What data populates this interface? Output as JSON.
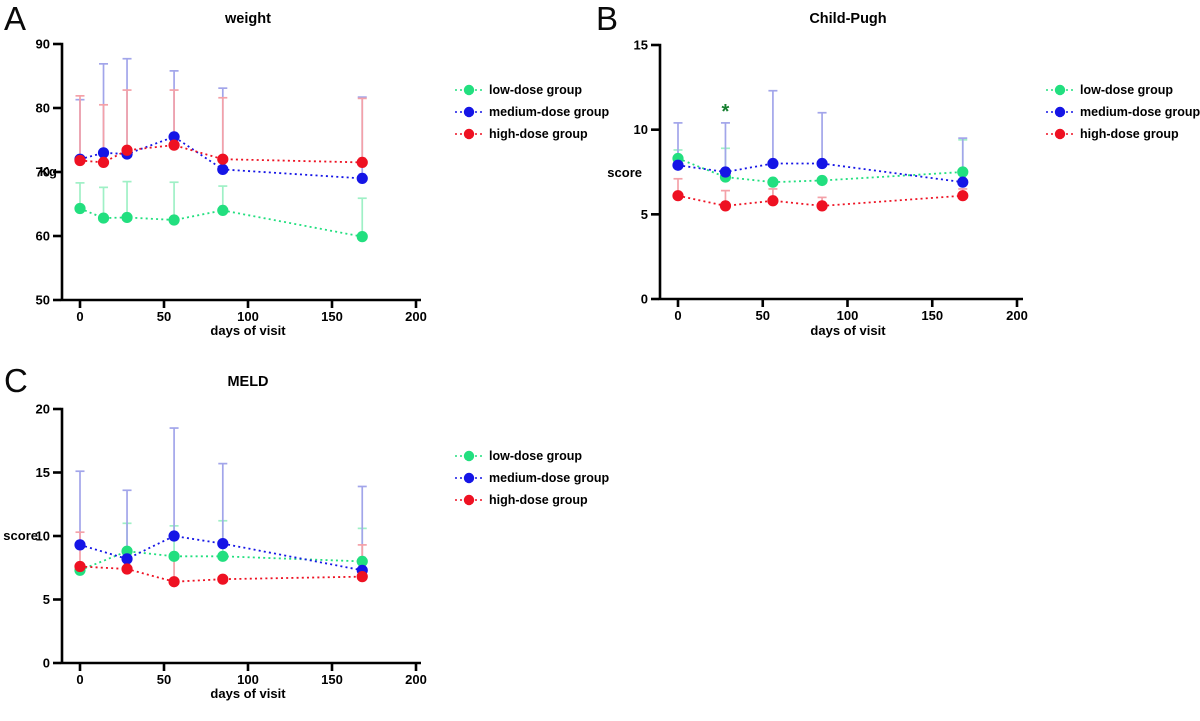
{
  "figure": {
    "panels": [
      {
        "label": "A",
        "title": "weight",
        "ylabel": "Kg",
        "xlabel": "days of visit"
      },
      {
        "label": "B",
        "title": "Child-Pugh",
        "ylabel": "score",
        "xlabel": "days of visit"
      },
      {
        "label": "C",
        "title": "MELD",
        "ylabel": "score",
        "xlabel": "days of visit"
      }
    ],
    "legend": {
      "items": [
        {
          "label": "low-dose group",
          "color": "#22df7f"
        },
        {
          "label": "medium-dose group",
          "color": "#1515e6"
        },
        {
          "label": "high-dose group",
          "color": "#ee1122"
        }
      ]
    }
  },
  "chart_data": [
    {
      "type": "line",
      "title": "weight",
      "xlabel": "days of visit",
      "ylabel": "Kg",
      "x": [
        0,
        14,
        28,
        56,
        85,
        168
      ],
      "xlim": [
        0,
        200
      ],
      "xticks": [
        0,
        50,
        100,
        150,
        200
      ],
      "ylim": [
        50,
        90
      ],
      "yticks": [
        50,
        60,
        70,
        80,
        90
      ],
      "grid": false,
      "legend_position": "right",
      "series": [
        {
          "name": "low-dose group",
          "color": "#22df7f",
          "light": "#9ff0c6",
          "values": [
            64.3,
            62.8,
            62.9,
            62.5,
            64.0,
            59.9
          ],
          "upper": [
            68.3,
            67.6,
            68.5,
            68.4,
            67.8,
            65.9
          ]
        },
        {
          "name": "medium-dose group",
          "color": "#1515e6",
          "light": "#a2a5ea",
          "values": [
            72.0,
            73.0,
            72.8,
            75.5,
            70.4,
            69.0
          ],
          "upper": [
            81.3,
            86.9,
            87.7,
            85.8,
            83.1,
            81.7
          ]
        },
        {
          "name": "high-dose group",
          "color": "#ee1122",
          "light": "#f4a1a8",
          "values": [
            71.8,
            71.5,
            73.4,
            74.2,
            72.0,
            71.5
          ],
          "upper": [
            81.9,
            80.5,
            82.8,
            82.8,
            81.6,
            81.5
          ]
        }
      ],
      "annotations": []
    },
    {
      "type": "line",
      "title": "Child-Pugh",
      "xlabel": "days of visit",
      "ylabel": "score",
      "x": [
        0,
        28,
        56,
        85,
        168
      ],
      "xlim": [
        0,
        200
      ],
      "xticks": [
        0,
        50,
        100,
        150,
        200
      ],
      "ylim": [
        0,
        15
      ],
      "yticks": [
        0,
        5,
        10,
        15
      ],
      "grid": false,
      "legend_position": "right",
      "series": [
        {
          "name": "low-dose group",
          "color": "#22df7f",
          "light": "#9ff0c6",
          "values": [
            8.3,
            7.2,
            6.9,
            7.0,
            7.5
          ],
          "upper": [
            8.8,
            8.9,
            6.9,
            7.0,
            9.4
          ]
        },
        {
          "name": "medium-dose group",
          "color": "#1515e6",
          "light": "#a2a5ea",
          "values": [
            7.9,
            7.5,
            8.0,
            8.0,
            6.9
          ],
          "upper": [
            10.4,
            10.4,
            12.3,
            11.0,
            9.5
          ]
        },
        {
          "name": "high-dose group",
          "color": "#ee1122",
          "light": "#f4a1a8",
          "values": [
            6.1,
            5.5,
            5.8,
            5.5,
            6.1
          ],
          "upper": [
            7.1,
            6.4,
            6.5,
            6.0,
            6.5
          ]
        }
      ],
      "annotations": [
        {
          "text": "*",
          "x": 28,
          "value": 11.1,
          "color": "#157f2f"
        }
      ]
    },
    {
      "type": "line",
      "title": "MELD",
      "xlabel": "days of visit",
      "ylabel": "score",
      "x": [
        0,
        28,
        56,
        85,
        168
      ],
      "xlim": [
        0,
        200
      ],
      "xticks": [
        0,
        50,
        100,
        150,
        200
      ],
      "ylim": [
        0,
        20
      ],
      "yticks": [
        0,
        5,
        10,
        15,
        20
      ],
      "grid": false,
      "legend_position": "right",
      "series": [
        {
          "name": "low-dose group",
          "color": "#22df7f",
          "light": "#9ff0c6",
          "values": [
            7.3,
            8.8,
            8.4,
            8.4,
            8.0
          ],
          "upper": [
            7.3,
            11.0,
            10.8,
            11.2,
            10.6
          ]
        },
        {
          "name": "medium-dose group",
          "color": "#1515e6",
          "light": "#a2a5ea",
          "values": [
            9.3,
            8.2,
            10.0,
            9.4,
            7.3
          ],
          "upper": [
            15.1,
            13.6,
            18.5,
            15.7,
            13.9
          ]
        },
        {
          "name": "high-dose group",
          "color": "#ee1122",
          "light": "#f4a1a8",
          "values": [
            7.6,
            7.4,
            6.4,
            6.6,
            6.8
          ],
          "upper": [
            10.3,
            7.4,
            8.4,
            6.6,
            9.3
          ]
        }
      ],
      "annotations": []
    }
  ]
}
